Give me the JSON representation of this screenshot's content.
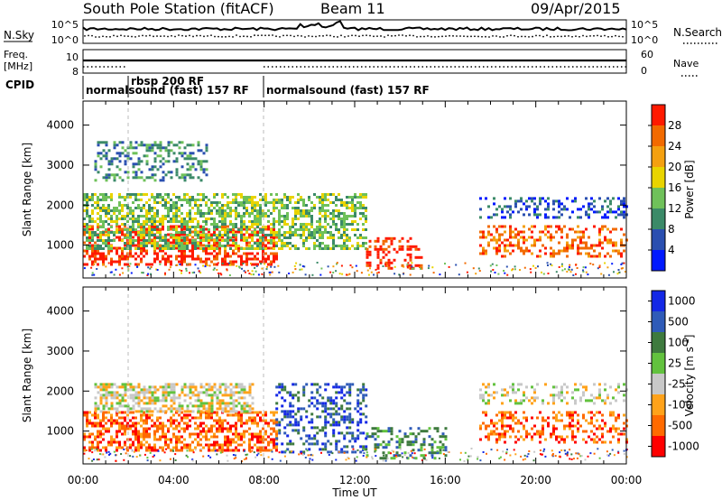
{
  "header": {
    "station": "South Pole Station (fitACF)",
    "beam": "Beam 11",
    "date": "09/Apr/2015"
  },
  "labels": {
    "nsky": "N.Sky",
    "nsearch": "N.Search",
    "freq": "Freq.",
    "freq_unit": "[MHz]",
    "nave": "Nave",
    "cpid": "CPID",
    "x_title": "Time UT",
    "slant_range": "Slant Range [km]",
    "power_title": "Power [dB]",
    "velocity_title_main": "Velocity [m s",
    "velocity_title_sup": "-1",
    "velocity_title_end": "]"
  },
  "noise_axis": {
    "top": "10^5",
    "bottom": "10^0"
  },
  "freq_axis": {
    "top": "10",
    "bottom": "8"
  },
  "nave_axis": {
    "top": "60",
    "bottom": "0"
  },
  "cpid_blocks": [
    {
      "label": "normalsound (fast) 157 RF",
      "start": 0.0
    },
    {
      "label": "rbsp 200 RF",
      "start": 1.5
    },
    {
      "label": "normalsound (fast) 157 RF",
      "start": 8.0
    }
  ],
  "colors": {
    "power": [
      "#0019ff",
      "#2a4fb0",
      "#3b8a68",
      "#6fc15a",
      "#e9d400",
      "#f4a010",
      "#f26a00",
      "#ff1a00"
    ],
    "velocity": [
      "#ff0000",
      "#ff6a00",
      "#ffa21a",
      "#c8c8c8",
      "#62c23e",
      "#3e7a3e",
      "#2f5bb8",
      "#1428e6"
    ]
  },
  "chart_data": [
    {
      "type": "heatmap",
      "quantity": "Power",
      "ylabel": "Slant Range [km]",
      "xlabel": "Time UT",
      "x_range_hours": [
        0,
        24
      ],
      "ylim": [
        180,
        4600
      ],
      "x_ticks": [
        "00:00",
        "04:00",
        "08:00",
        "12:00",
        "16:00",
        "20:00",
        "00:00"
      ],
      "y_ticks": [
        1000,
        2000,
        3000,
        4000
      ],
      "colorbar_ticks": [
        "4",
        "8",
        "12",
        "16",
        "20",
        "24",
        "28"
      ],
      "colorbar_title": "Power [dB]",
      "echo_regions": [
        {
          "t_start": 0.0,
          "t_end": 8.5,
          "r_min": 500,
          "r_max": 1500,
          "level": 7
        },
        {
          "t_start": 0.0,
          "t_end": 12.5,
          "r_min": 900,
          "r_max": 2300,
          "level": 3
        },
        {
          "t_start": 0.5,
          "t_end": 5.5,
          "r_min": 2600,
          "r_max": 3600,
          "level": 2
        },
        {
          "t_start": 12.5,
          "t_end": 15.0,
          "r_min": 400,
          "r_max": 1200,
          "level": 7
        },
        {
          "t_start": 17.5,
          "t_end": 24.0,
          "r_min": 700,
          "r_max": 1500,
          "level": 6
        },
        {
          "t_start": 17.5,
          "t_end": 24.0,
          "r_min": 1700,
          "r_max": 2200,
          "level": 1
        }
      ]
    },
    {
      "type": "heatmap",
      "quantity": "Velocity",
      "ylabel": "Slant Range [km]",
      "xlabel": "Time UT",
      "x_range_hours": [
        0,
        24
      ],
      "ylim": [
        180,
        4600
      ],
      "x_ticks": [
        "00:00",
        "04:00",
        "08:00",
        "12:00",
        "16:00",
        "20:00",
        "00:00"
      ],
      "y_ticks": [
        1000,
        2000,
        3000,
        4000
      ],
      "colorbar_ticks": [
        "-1000",
        "-500",
        "-100",
        "-25",
        "25",
        "100",
        "500",
        "1000"
      ],
      "colorbar_title": "Velocity [m s-1]",
      "echo_regions": [
        {
          "t_start": 0.0,
          "t_end": 8.5,
          "r_min": 500,
          "r_max": 1500,
          "level": 1
        },
        {
          "t_start": 0.5,
          "t_end": 7.5,
          "r_min": 1500,
          "r_max": 2200,
          "level": 3
        },
        {
          "t_start": 8.5,
          "t_end": 12.5,
          "r_min": 500,
          "r_max": 2200,
          "level": 6
        },
        {
          "t_start": 12.5,
          "t_end": 16.0,
          "r_min": 300,
          "r_max": 1100,
          "level": 5
        },
        {
          "t_start": 17.5,
          "t_end": 24.0,
          "r_min": 700,
          "r_max": 1500,
          "level": 1
        },
        {
          "t_start": 17.5,
          "t_end": 24.0,
          "r_min": 1700,
          "r_max": 2200,
          "level": 3
        }
      ]
    }
  ]
}
